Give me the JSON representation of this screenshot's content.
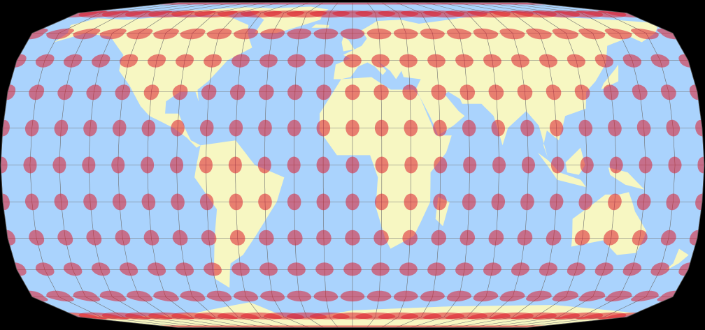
{
  "map": {
    "background_color": "#000000",
    "ocean_color": "#aad3fd",
    "land_color": "#f7f7c2",
    "graticule_color": "#6f6f6f",
    "graticule_step_degrees": 15,
    "indicatrix_color": "#dc1e2d",
    "indicatrix_opacity": 0.55,
    "indicatrix_step_degrees": 15
  }
}
